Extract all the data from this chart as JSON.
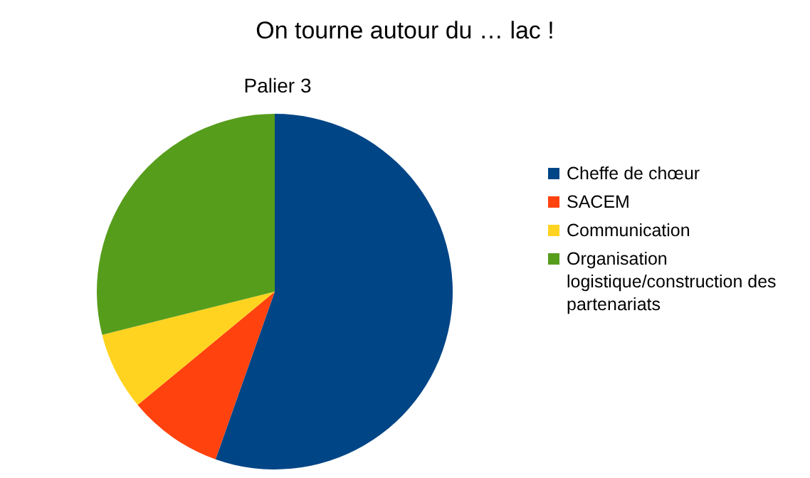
{
  "chart_data": {
    "type": "pie",
    "title": "On tourne autour du … lac !",
    "subtitle": "Palier 3",
    "categories": [
      "Cheffe de chœur",
      "SACEM",
      "Communication",
      "Organisation logistique/construction des partenariats"
    ],
    "values": [
      55.4,
      8.6,
      7.1,
      28.9
    ],
    "colors": [
      "#004586",
      "#ff420e",
      "#ffd320",
      "#579d1c"
    ],
    "legend": "right"
  }
}
